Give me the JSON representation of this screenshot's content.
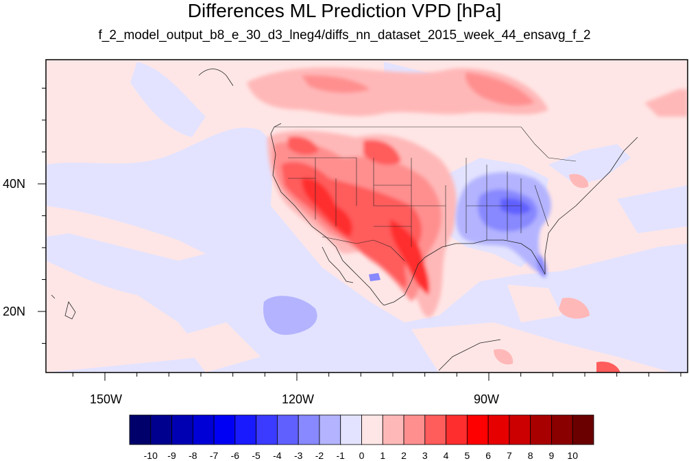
{
  "title": "Differences ML Prediction VPD [hPa]",
  "subtitle": "f_2_model_output_b8_e_30_d3_lneg4/diffs_nn_dataset_2015_week_44_ensavg_f_2",
  "map": {
    "x_ticks": [
      {
        "label": "150W",
        "lon": -150
      },
      {
        "label": "120W",
        "lon": -120
      },
      {
        "label": "90W",
        "lon": -90
      }
    ],
    "y_ticks": [
      {
        "label": "40N",
        "lat": 40
      },
      {
        "label": "20N",
        "lat": 20
      }
    ]
  },
  "colorbar": {
    "labels": [
      "-10",
      "-9",
      "-8",
      "-7",
      "-6",
      "-5",
      "-4",
      "-3",
      "-2",
      "-1",
      "0",
      "1",
      "2",
      "3",
      "4",
      "5",
      "6",
      "7",
      "8",
      "9",
      "10"
    ],
    "colors": [
      "#00006b",
      "#00008f",
      "#0000b3",
      "#0000d6",
      "#0000f5",
      "#1a1aff",
      "#3b3bff",
      "#6060ff",
      "#8888ff",
      "#b3b3ff",
      "#e3e3ff",
      "#ffe6e6",
      "#ffb8b8",
      "#ff8f8f",
      "#ff5c5c",
      "#ff2e2e",
      "#ff0000",
      "#e60000",
      "#cc0000",
      "#a80000",
      "#8a0000",
      "#6b0000"
    ]
  }
}
